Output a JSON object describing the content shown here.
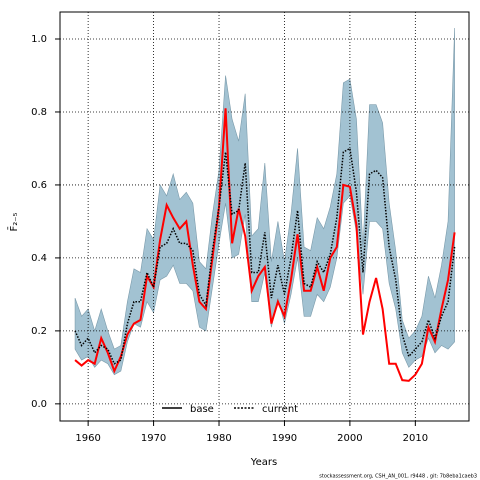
{
  "chart_data": {
    "type": "line",
    "xlabel": "Years",
    "ylabel": "F̄₂₋₅",
    "caption": "stockassessment.org, CSH_AN_001, r9448 , git: 7b8eba1caeb3",
    "x": [
      1958,
      1959,
      1960,
      1961,
      1962,
      1963,
      1964,
      1965,
      1966,
      1967,
      1968,
      1969,
      1970,
      1971,
      1972,
      1973,
      1974,
      1975,
      1976,
      1977,
      1978,
      1979,
      1980,
      1981,
      1982,
      1983,
      1984,
      1985,
      1986,
      1987,
      1988,
      1989,
      1990,
      1991,
      1992,
      1993,
      1994,
      1995,
      1996,
      1997,
      1998,
      1999,
      2000,
      2001,
      2002,
      2003,
      2004,
      2005,
      2006,
      2007,
      2008,
      2009,
      2010,
      2011,
      2012,
      2013,
      2014,
      2015,
      2016
    ],
    "band": {
      "color": "#a2c2d2",
      "edge": "#7a9aaa",
      "upper": [
        0.29,
        0.24,
        0.26,
        0.2,
        0.26,
        0.2,
        0.15,
        0.16,
        0.28,
        0.37,
        0.36,
        0.48,
        0.45,
        0.6,
        0.57,
        0.63,
        0.56,
        0.58,
        0.55,
        0.39,
        0.37,
        0.52,
        0.64,
        0.9,
        0.78,
        0.72,
        0.85,
        0.46,
        0.48,
        0.66,
        0.39,
        0.5,
        0.39,
        0.52,
        0.7,
        0.43,
        0.42,
        0.51,
        0.48,
        0.54,
        0.63,
        0.88,
        0.89,
        0.78,
        0.43,
        0.82,
        0.82,
        0.77,
        0.55,
        0.42,
        0.23,
        0.18,
        0.2,
        0.24,
        0.35,
        0.29,
        0.38,
        0.5,
        1.03
      ],
      "lower": [
        0.15,
        0.12,
        0.13,
        0.1,
        0.12,
        0.11,
        0.08,
        0.09,
        0.17,
        0.22,
        0.21,
        0.28,
        0.25,
        0.34,
        0.35,
        0.38,
        0.33,
        0.33,
        0.31,
        0.21,
        0.2,
        0.32,
        0.44,
        0.55,
        0.4,
        0.41,
        0.52,
        0.28,
        0.28,
        0.36,
        0.21,
        0.29,
        0.22,
        0.3,
        0.4,
        0.24,
        0.24,
        0.3,
        0.28,
        0.32,
        0.4,
        0.55,
        0.57,
        0.47,
        0.3,
        0.5,
        0.5,
        0.48,
        0.33,
        0.26,
        0.14,
        0.1,
        0.12,
        0.13,
        0.18,
        0.14,
        0.16,
        0.15,
        0.17
      ]
    },
    "series": [
      {
        "name": "base",
        "color": "#ff0000",
        "dash": "solid",
        "legend_color": "#000000",
        "values": [
          0.12,
          0.105,
          0.12,
          0.11,
          0.18,
          0.14,
          0.09,
          0.13,
          0.19,
          0.22,
          0.23,
          0.35,
          0.32,
          0.45,
          0.545,
          0.51,
          0.48,
          0.5,
          0.38,
          0.28,
          0.26,
          0.4,
          0.54,
          0.81,
          0.44,
          0.535,
          0.46,
          0.31,
          0.35,
          0.375,
          0.22,
          0.28,
          0.24,
          0.34,
          0.465,
          0.31,
          0.31,
          0.375,
          0.31,
          0.4,
          0.43,
          0.6,
          0.595,
          0.49,
          0.19,
          0.28,
          0.345,
          0.26,
          0.11,
          0.11,
          0.065,
          0.063,
          0.08,
          0.11,
          0.21,
          0.17,
          0.26,
          0.34,
          0.47
        ]
      },
      {
        "name": "current",
        "color": "#000000",
        "dash": "dotted",
        "legend_color": "#000000",
        "values": [
          0.2,
          0.16,
          0.18,
          0.14,
          0.16,
          0.15,
          0.11,
          0.12,
          0.22,
          0.28,
          0.28,
          0.36,
          0.32,
          0.43,
          0.44,
          0.48,
          0.44,
          0.44,
          0.42,
          0.3,
          0.27,
          0.42,
          0.54,
          0.69,
          0.52,
          0.53,
          0.66,
          0.36,
          0.36,
          0.47,
          0.29,
          0.38,
          0.3,
          0.4,
          0.53,
          0.33,
          0.32,
          0.39,
          0.36,
          0.41,
          0.51,
          0.69,
          0.7,
          0.58,
          0.36,
          0.63,
          0.64,
          0.62,
          0.43,
          0.34,
          0.19,
          0.13,
          0.15,
          0.17,
          0.23,
          0.18,
          0.24,
          0.28,
          0.43
        ]
      }
    ],
    "xlim": [
      1955.7,
      2018.2
    ],
    "ylim": [
      -0.047,
      1.074
    ],
    "xticks": [
      1960,
      1970,
      1980,
      1990,
      2000,
      2010
    ],
    "yticks": [
      {
        "value": 0,
        "label": "0.0"
      },
      0.2,
      0.4,
      0.6,
      0.8,
      {
        "value": 1,
        "label": "1.0"
      }
    ],
    "grid": true,
    "legend": "bottom"
  }
}
